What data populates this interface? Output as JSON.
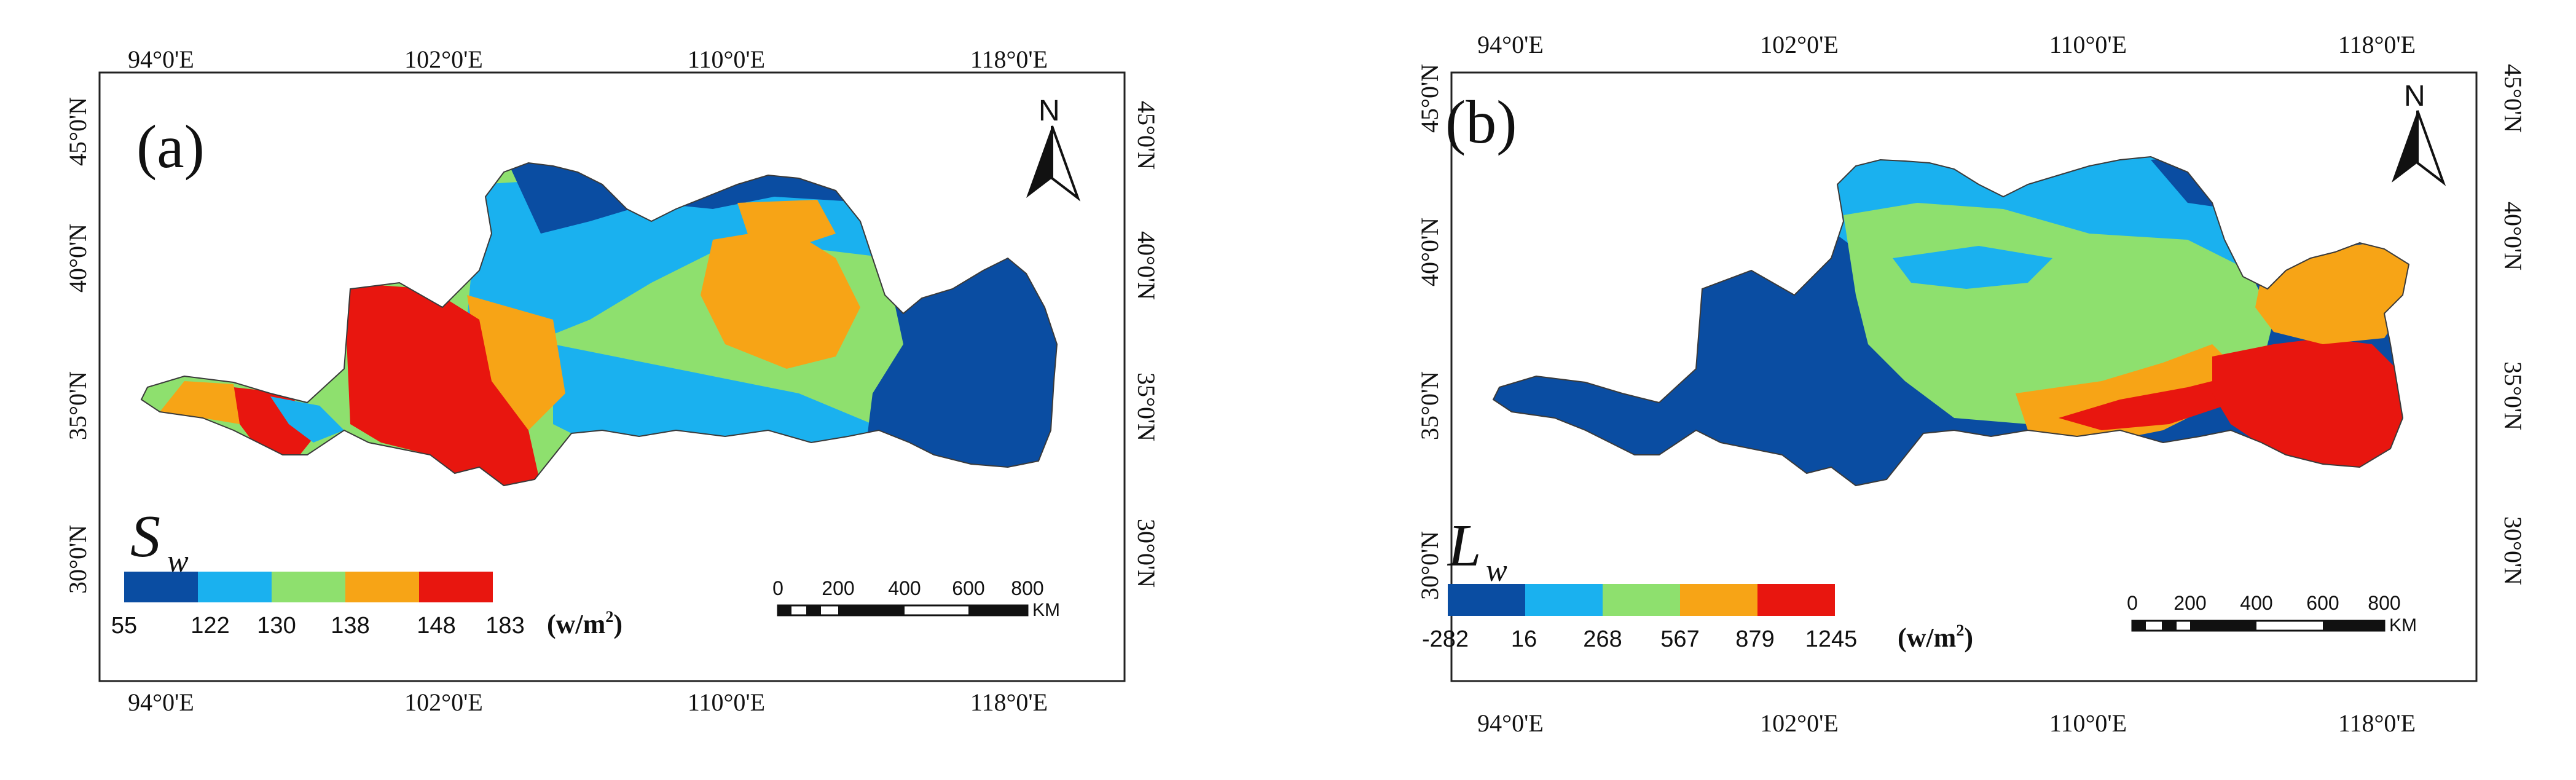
{
  "maps": [
    {
      "panel_label": "(a)",
      "variable": {
        "symbol": "S",
        "subscript": "w"
      },
      "legend": {
        "breaks": [
          "55",
          "122",
          "130",
          "138",
          "148",
          "183"
        ],
        "colors": [
          "#0a4da2",
          "#1ab1ef",
          "#8ee06e",
          "#f7a416",
          "#e8160f"
        ],
        "unit_base": "(w/m",
        "unit_sup": "2",
        "unit_close": ")"
      },
      "lon_ticks": [
        "94°0'E",
        "102°0'E",
        "110°0'E",
        "118°0'E"
      ],
      "lat_ticks": [
        "45°0'N",
        "40°0'N",
        "35°0'N",
        "30°0'N"
      ],
      "scale_bar": {
        "labels": [
          "0",
          "200",
          "400",
          "600",
          "800"
        ],
        "unit": "KM"
      },
      "north_label": "N"
    },
    {
      "panel_label": "(b)",
      "variable": {
        "symbol": "L",
        "subscript": "w"
      },
      "legend": {
        "breaks": [
          "-282",
          "16",
          "268",
          "567",
          "879",
          "1245"
        ],
        "colors": [
          "#0a4da2",
          "#1ab1ef",
          "#8ee06e",
          "#f7a416",
          "#e8160f"
        ],
        "unit_base": "(w/m",
        "unit_sup": "2",
        "unit_close": ")"
      },
      "lon_ticks": [
        "94°0'E",
        "102°0'E",
        "110°0'E",
        "118°0'E"
      ],
      "lat_ticks": [
        "45°0'N",
        "40°0'N",
        "35°0'N",
        "30°0'N"
      ],
      "scale_bar": {
        "labels": [
          "0",
          "200",
          "400",
          "600",
          "800"
        ],
        "unit": "KM"
      },
      "north_label": "N"
    }
  ]
}
